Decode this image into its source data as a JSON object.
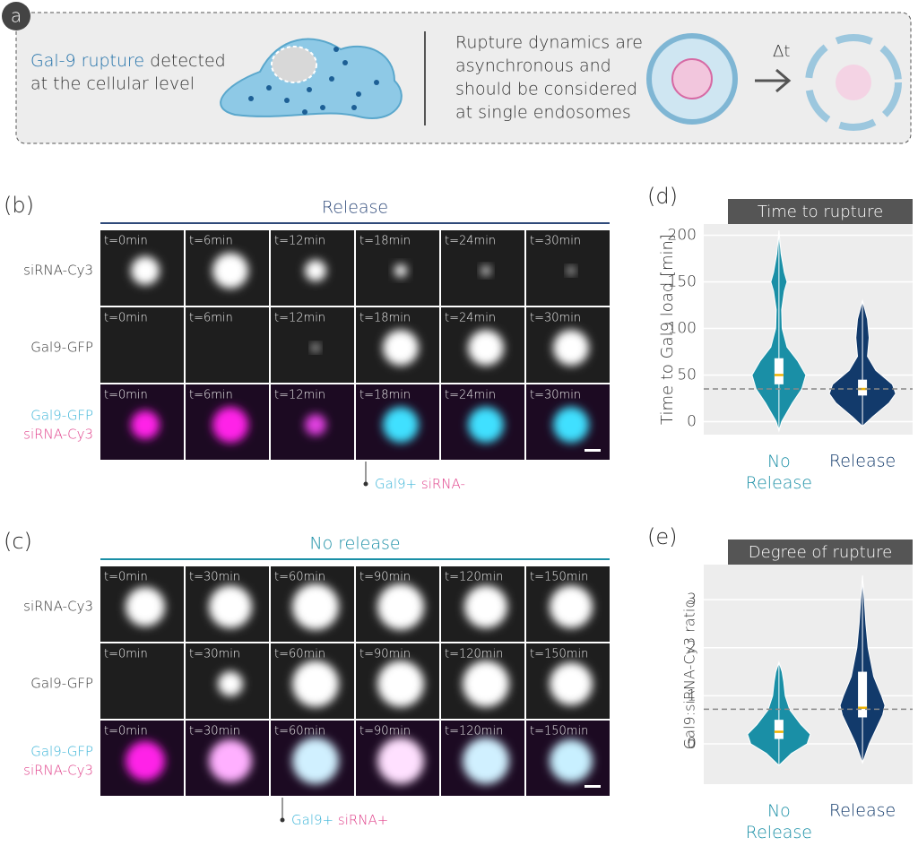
{
  "panel_a": {
    "label": "a",
    "highlight": "Gal-9 rupture",
    "line1_rest": "detected",
    "line2": "at the cellular level",
    "right_lines": [
      "Rupture dynamics are",
      "asynchronous and",
      "should be considered",
      "at single endosomes"
    ],
    "delta": "Δt"
  },
  "panel_b": {
    "label": "(b)",
    "header": "Release",
    "row_labels": [
      "siRNA-Cy3",
      "Gal9-GFP"
    ],
    "merge_labels": [
      "Gal9-GFP",
      "siRNA-Cy3"
    ],
    "times": [
      "t=0min",
      "t=6min",
      "t=12min",
      "t=18min",
      "t=24min",
      "t=30min"
    ],
    "annotation": [
      "Gal9+",
      "siRNA-"
    ]
  },
  "panel_c": {
    "label": "(c)",
    "header": "No release",
    "row_labels": [
      "siRNA-Cy3",
      "Gal9-GFP"
    ],
    "merge_labels": [
      "Gal9-GFP",
      "siRNA-Cy3"
    ],
    "times": [
      "t=0min",
      "t=30min",
      "t=60min",
      "t=90min",
      "t=120min",
      "t=150min"
    ],
    "annotation": [
      "Gal9+",
      "siRNA+"
    ]
  },
  "chart_data": [
    {
      "type": "violin",
      "label": "(d)",
      "title": "Time to rupture",
      "ylabel": "Time to Gal9 load [min]",
      "categories": [
        "No Release",
        "Release"
      ],
      "ylim": [
        -14,
        212
      ],
      "yticks": [
        0,
        50,
        100,
        150,
        200
      ],
      "reference_line": 35,
      "groups": [
        {
          "color": "#1a8fa6",
          "min": -10,
          "q1": 40,
          "median": 50,
          "q3": 68,
          "max": 205,
          "density": {
            "y": [
              -10,
              0,
              20,
              35,
              50,
              65,
              80,
              100,
              120,
              140,
              150,
              160,
              180,
              205
            ],
            "width": [
              0,
              0.1,
              0.5,
              0.85,
              1,
              0.7,
              0.3,
              0.12,
              0.1,
              0.2,
              0.3,
              0.2,
              0.08,
              0
            ]
          }
        },
        {
          "color": "#123a6b",
          "min": -5,
          "q1": 28,
          "median": 35,
          "q3": 45,
          "max": 130,
          "density": {
            "y": [
              -5,
              5,
              20,
              30,
              40,
              55,
              70,
              90,
              110,
              130
            ],
            "width": [
              0,
              0.3,
              0.8,
              1,
              0.9,
              0.4,
              0.15,
              0.2,
              0.15,
              0
            ]
          }
        }
      ]
    },
    {
      "type": "violin",
      "label": "(e)",
      "title": "Degree of rupture",
      "ylabel": "Gal9:siRNA-Cy3 ratio",
      "categories": [
        "No Release",
        "Release"
      ],
      "ylim": [
        -0.84,
        3.73
      ],
      "yticks": [
        0,
        1,
        2,
        3
      ],
      "reference_line": 0.72,
      "groups": [
        {
          "color": "#1a8fa6",
          "min": -0.45,
          "q1": 0.1,
          "median": 0.25,
          "q3": 0.5,
          "max": 1.7,
          "density": {
            "y": [
              -0.45,
              -0.2,
              0,
              0.2,
              0.4,
              0.7,
              1.0,
              1.3,
              1.5,
              1.7
            ],
            "width": [
              0,
              0.4,
              0.9,
              1,
              0.7,
              0.35,
              0.2,
              0.15,
              0.1,
              0
            ]
          }
        },
        {
          "color": "#123a6b",
          "min": -0.4,
          "q1": 0.55,
          "median": 0.75,
          "q3": 1.5,
          "max": 3.5,
          "density": {
            "y": [
              -0.4,
              0,
              0.3,
              0.6,
              0.8,
              1.0,
              1.4,
              2.0,
              2.5,
              3.0,
              3.5
            ],
            "width": [
              0,
              0.3,
              0.6,
              0.9,
              1,
              0.85,
              0.5,
              0.25,
              0.15,
              0.08,
              0
            ]
          }
        }
      ]
    }
  ]
}
